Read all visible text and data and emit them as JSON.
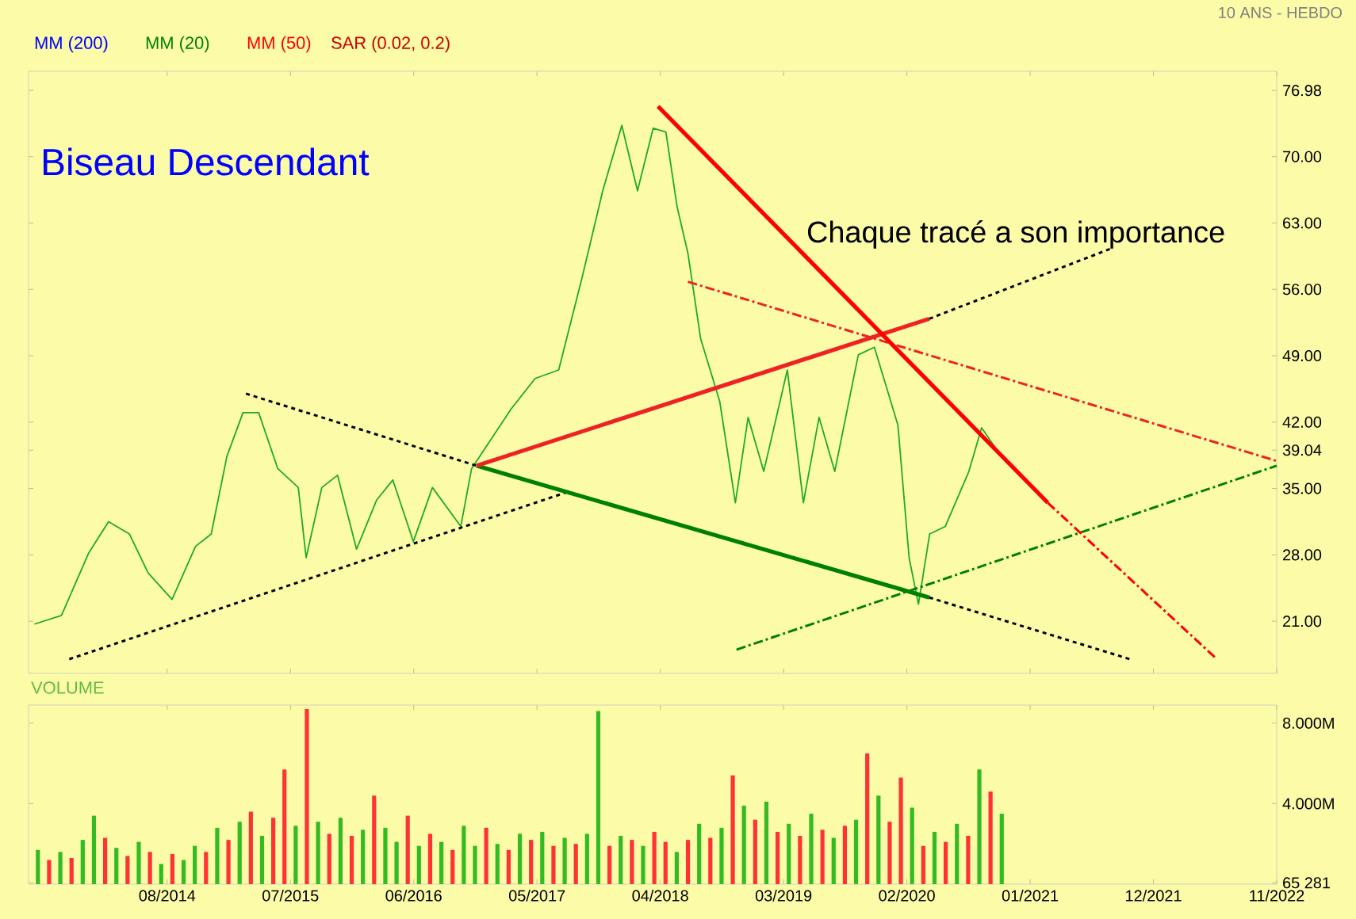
{
  "chart_data": [
    {
      "type": "line",
      "title": "Biseau Descendant",
      "subtitle": "10 ANS - HEBDO",
      "annotations": [
        "MM (200)",
        "MM (20)",
        "MM (50)",
        "SAR (0.02, 0.2)",
        "Chaque tracé a son importance"
      ],
      "xlim": [
        "2013-07-20",
        "2022-11-01"
      ],
      "ylim": [
        15.5,
        79
      ],
      "xticks": [
        {
          "value": "2014-08-01",
          "label": null
        },
        {
          "value": "2015-07-01",
          "label": null
        },
        {
          "value": "2016-06-01",
          "label": null
        },
        {
          "value": "2017-05-01",
          "label": null
        },
        {
          "value": "2018-04-01",
          "label": null
        },
        {
          "value": "2019-03-01",
          "label": null
        },
        {
          "value": "2020-02-01",
          "label": null
        },
        {
          "value": "2021-01-01",
          "label": null
        },
        {
          "value": "2021-12-01",
          "label": null
        },
        {
          "value": "2022-11-01",
          "label": null
        }
      ],
      "yticks": [
        {
          "value": 21,
          "label": "21.00"
        },
        {
          "value": 28,
          "label": "28.00"
        },
        {
          "value": 35,
          "label": "35.00"
        },
        {
          "value": 39.04,
          "label": "39.04"
        },
        {
          "value": 42,
          "label": "42.00"
        },
        {
          "value": 49,
          "label": "49.00"
        },
        {
          "value": 56,
          "label": "56.00"
        },
        {
          "value": 63,
          "label": "63.00"
        },
        {
          "value": 70,
          "label": "70.00"
        },
        {
          "value": 76.98,
          "label": "76.98"
        }
      ],
      "tick_labels": "y",
      "grid": false,
      "marker": "none",
      "series": [
        {
          "color": "#22aa22",
          "line_style": "solid",
          "x": [
            "2013-08-06",
            "2013-10-18",
            "2014-01-01",
            "2014-02-24",
            "2014-04-20",
            "2014-06-10",
            "2014-08-14",
            "2014-10-17",
            "2014-11-29",
            "2015-01-11",
            "2015-02-24",
            "2015-04-06",
            "2015-05-27",
            "2015-07-22",
            "2015-08-13",
            "2015-09-25",
            "2015-11-07",
            "2015-12-28",
            "2016-02-22",
            "2016-04-05",
            "2016-05-30",
            "2016-07-21",
            "2016-10-07",
            "2016-11-06",
            "2017-02-22",
            "2017-04-26",
            "2017-06-29",
            "2017-09-02",
            "2017-10-27",
            "2017-12-18",
            "2018-01-30",
            "2018-03-12",
            "2018-04-16",
            "2018-05-16",
            "2018-06-15",
            "2018-07-19",
            "2018-09-10",
            "2018-10-22",
            "2018-11-26",
            "2019-01-08",
            "2019-03-11",
            "2019-04-24",
            "2019-06-06",
            "2019-07-18",
            "2019-09-21",
            "2019-11-04",
            "2020-01-07",
            "2020-02-07",
            "2020-03-02",
            "2020-04-02",
            "2020-05-14",
            "2020-07-17",
            "2020-08-21",
            "2020-10-03"
          ],
          "values": [
            20.7,
            21.6,
            28.2,
            31.5,
            30.2,
            26.1,
            23.3,
            28.9,
            30.2,
            38.4,
            43.0,
            43.0,
            37.1,
            35.1,
            27.7,
            35.1,
            36.4,
            28.6,
            33.8,
            35.9,
            29.4,
            35.1,
            31.0,
            37.1,
            43.4,
            46.6,
            47.5,
            57.3,
            66.4,
            73.3,
            66.4,
            73.0,
            72.6,
            64.7,
            59.8,
            50.8,
            44.2,
            33.5,
            42.5,
            36.8,
            47.5,
            33.5,
            42.5,
            36.8,
            49.1,
            49.9,
            41.7,
            27.7,
            22.8,
            30.2,
            31.0,
            36.8,
            41.4,
            39.0
          ]
        },
        {
          "color": "#000000",
          "line_style": "dotted",
          "x": [
            "2013-11-09",
            "2017-07-20"
          ],
          "values": [
            17.0,
            34.6
          ]
        },
        {
          "color": "#000000",
          "line_style": "dotted",
          "x": [
            "2015-03-02",
            "2016-11-19"
          ],
          "values": [
            45.0,
            37.4
          ]
        },
        {
          "color": "#008000",
          "line_style": "solid",
          "x": [
            "2016-11-19",
            "2020-04-01"
          ],
          "values": [
            37.4,
            23.5
          ]
        },
        {
          "color": "#000000",
          "line_style": "dotted",
          "x": [
            "2020-04-01",
            "2021-09-28"
          ],
          "values": [
            23.5,
            17.0
          ]
        },
        {
          "color": "#ee2222",
          "line_style": "solid",
          "x": [
            "2016-11-19",
            "2020-04-01"
          ],
          "values": [
            37.4,
            52.9
          ]
        },
        {
          "color": "#000000",
          "line_style": "dotted",
          "x": [
            "2020-04-01",
            "2021-08-07"
          ],
          "values": [
            52.9,
            60.3
          ]
        },
        {
          "color": "#ee2222",
          "line_style": "dashed",
          "x": [
            "2018-06-15",
            "2022-11-01"
          ],
          "values": [
            56.8,
            37.9
          ]
        },
        {
          "color": "#008000",
          "line_style": "dashed",
          "x": [
            "2018-10-25",
            "2022-11-01"
          ],
          "values": [
            18.0,
            37.4
          ]
        },
        {
          "color": "#ff0000",
          "line_style": "solid",
          "x": [
            "2018-03-25",
            "2021-02-18"
          ],
          "values": [
            75.3,
            33.5
          ]
        },
        {
          "color": "#ff0000",
          "line_style": "dashed",
          "x": [
            "2021-02-18",
            "2022-05-21"
          ],
          "values": [
            33.5,
            17.0
          ]
        }
      ]
    },
    {
      "type": "bar",
      "title": "VOLUME",
      "xlim": [
        "2013-07-20",
        "2022-11-01"
      ],
      "ylim": [
        0,
        8900000
      ],
      "xticks": [
        {
          "value": "2014-08-01",
          "label": "08/2014"
        },
        {
          "value": "2015-07-01",
          "label": "07/2015"
        },
        {
          "value": "2016-06-01",
          "label": "06/2016"
        },
        {
          "value": "2017-05-01",
          "label": "05/2017"
        },
        {
          "value": "2018-04-01",
          "label": "04/2018"
        },
        {
          "value": "2019-03-01",
          "label": "03/2019"
        },
        {
          "value": "2020-02-01",
          "label": "02/2020"
        },
        {
          "value": "2021-01-01",
          "label": "01/2021"
        },
        {
          "value": "2021-12-01",
          "label": "12/2021"
        },
        {
          "value": "2022-11-01",
          "label": "11/2022"
        }
      ],
      "yticks": [
        {
          "value": 65281,
          "label": "65 281"
        },
        {
          "value": 4000000,
          "label": "4.000M"
        },
        {
          "value": 8000000,
          "label": "8.000M"
        }
      ],
      "grid": false,
      "x": [
        "2013-08-15",
        "2013-09-15",
        "2013-10-15",
        "2013-11-15",
        "2013-12-15",
        "2014-01-15",
        "2014-02-15",
        "2014-03-15",
        "2014-04-15",
        "2014-05-15",
        "2014-06-15",
        "2014-07-15",
        "2014-08-15",
        "2014-09-15",
        "2014-10-15",
        "2014-11-15",
        "2014-12-15",
        "2015-01-15",
        "2015-02-15",
        "2015-03-15",
        "2015-04-15",
        "2015-05-15",
        "2015-06-15",
        "2015-07-15",
        "2015-08-15",
        "2015-09-15",
        "2015-10-15",
        "2015-11-15",
        "2015-12-15",
        "2016-01-15",
        "2016-02-15",
        "2016-03-15",
        "2016-04-15",
        "2016-05-15",
        "2016-06-15",
        "2016-07-15",
        "2016-08-15",
        "2016-09-15",
        "2016-10-15",
        "2016-11-15",
        "2016-12-15",
        "2017-01-15",
        "2017-02-15",
        "2017-03-15",
        "2017-04-15",
        "2017-05-15",
        "2017-06-15",
        "2017-07-15",
        "2017-08-15",
        "2017-09-15",
        "2017-10-15",
        "2017-11-15",
        "2017-12-15",
        "2018-01-15",
        "2018-02-15",
        "2018-03-15",
        "2018-04-15",
        "2018-05-15",
        "2018-06-15",
        "2018-07-15",
        "2018-08-15",
        "2018-09-15",
        "2018-10-15",
        "2018-11-15",
        "2018-12-15",
        "2019-01-15",
        "2019-02-15",
        "2019-03-15",
        "2019-04-15",
        "2019-05-15",
        "2019-06-15",
        "2019-07-15",
        "2019-08-15",
        "2019-09-15",
        "2019-10-15",
        "2019-11-15",
        "2019-12-15",
        "2020-01-15",
        "2020-02-15",
        "2020-03-15",
        "2020-04-15",
        "2020-05-15",
        "2020-06-15",
        "2020-07-15",
        "2020-08-15",
        "2020-09-15",
        "2020-10-15"
      ],
      "values": [
        1700000,
        1200000,
        1600000,
        1300000,
        2200000,
        3400000,
        2300000,
        1800000,
        1400000,
        2100000,
        1600000,
        1000000,
        1500000,
        1200000,
        1900000,
        1600000,
        2800000,
        2200000,
        3100000,
        3600000,
        2400000,
        3300000,
        5700000,
        2900000,
        8700000,
        3100000,
        2500000,
        3300000,
        2400000,
        2700000,
        4400000,
        2800000,
        2100000,
        3400000,
        1900000,
        2500000,
        2100000,
        1700000,
        2900000,
        1900000,
        2800000,
        2000000,
        1700000,
        2500000,
        2200000,
        2600000,
        1900000,
        2300000,
        2000000,
        2500000,
        8600000,
        1900000,
        2400000,
        2200000,
        1900000,
        2600000,
        2100000,
        1600000,
        2200000,
        3000000,
        2300000,
        2800000,
        5400000,
        3900000,
        3200000,
        4100000,
        2600000,
        3000000,
        2400000,
        3500000,
        2700000,
        2300000,
        2900000,
        3200000,
        6500000,
        4400000,
        3100000,
        5300000,
        3800000,
        1900000,
        2600000,
        2100000,
        3000000,
        2400000,
        5700000,
        4600000,
        3500000
      ],
      "colors": [
        "#33bb22",
        "#ff3333",
        "#33bb22",
        "#ff3333",
        "#33bb22",
        "#33bb22",
        "#ff3333",
        "#33bb22",
        "#ff3333",
        "#33bb22",
        "#ff3333",
        "#33bb22",
        "#ff3333",
        "#33bb22",
        "#33bb22",
        "#ff3333",
        "#33bb22",
        "#ff3333",
        "#33bb22",
        "#ff3333",
        "#33bb22",
        "#ff3333",
        "#ff3333",
        "#33bb22",
        "#ff3333",
        "#33bb22",
        "#ff3333",
        "#33bb22",
        "#ff3333",
        "#33bb22",
        "#ff3333",
        "#33bb22",
        "#33bb22",
        "#ff3333",
        "#33bb22",
        "#ff3333",
        "#33bb22",
        "#ff3333",
        "#33bb22",
        "#33bb22",
        "#ff3333",
        "#33bb22",
        "#ff3333",
        "#33bb22",
        "#ff3333",
        "#33bb22",
        "#ff3333",
        "#33bb22",
        "#ff3333",
        "#33bb22",
        "#33bb22",
        "#ff3333",
        "#33bb22",
        "#ff3333",
        "#33bb22",
        "#ff3333",
        "#ff3333",
        "#33bb22",
        "#ff3333",
        "#33bb22",
        "#ff3333",
        "#33bb22",
        "#ff3333",
        "#33bb22",
        "#ff3333",
        "#33bb22",
        "#ff3333",
        "#33bb22",
        "#ff3333",
        "#33bb22",
        "#ff3333",
        "#33bb22",
        "#ff3333",
        "#33bb22",
        "#ff3333",
        "#33bb22",
        "#ff3333",
        "#ff3333",
        "#33bb22",
        "#ff3333",
        "#33bb22",
        "#ff3333",
        "#33bb22",
        "#ff3333",
        "#33bb22",
        "#ff3333",
        "#33bb22"
      ]
    }
  ]
}
